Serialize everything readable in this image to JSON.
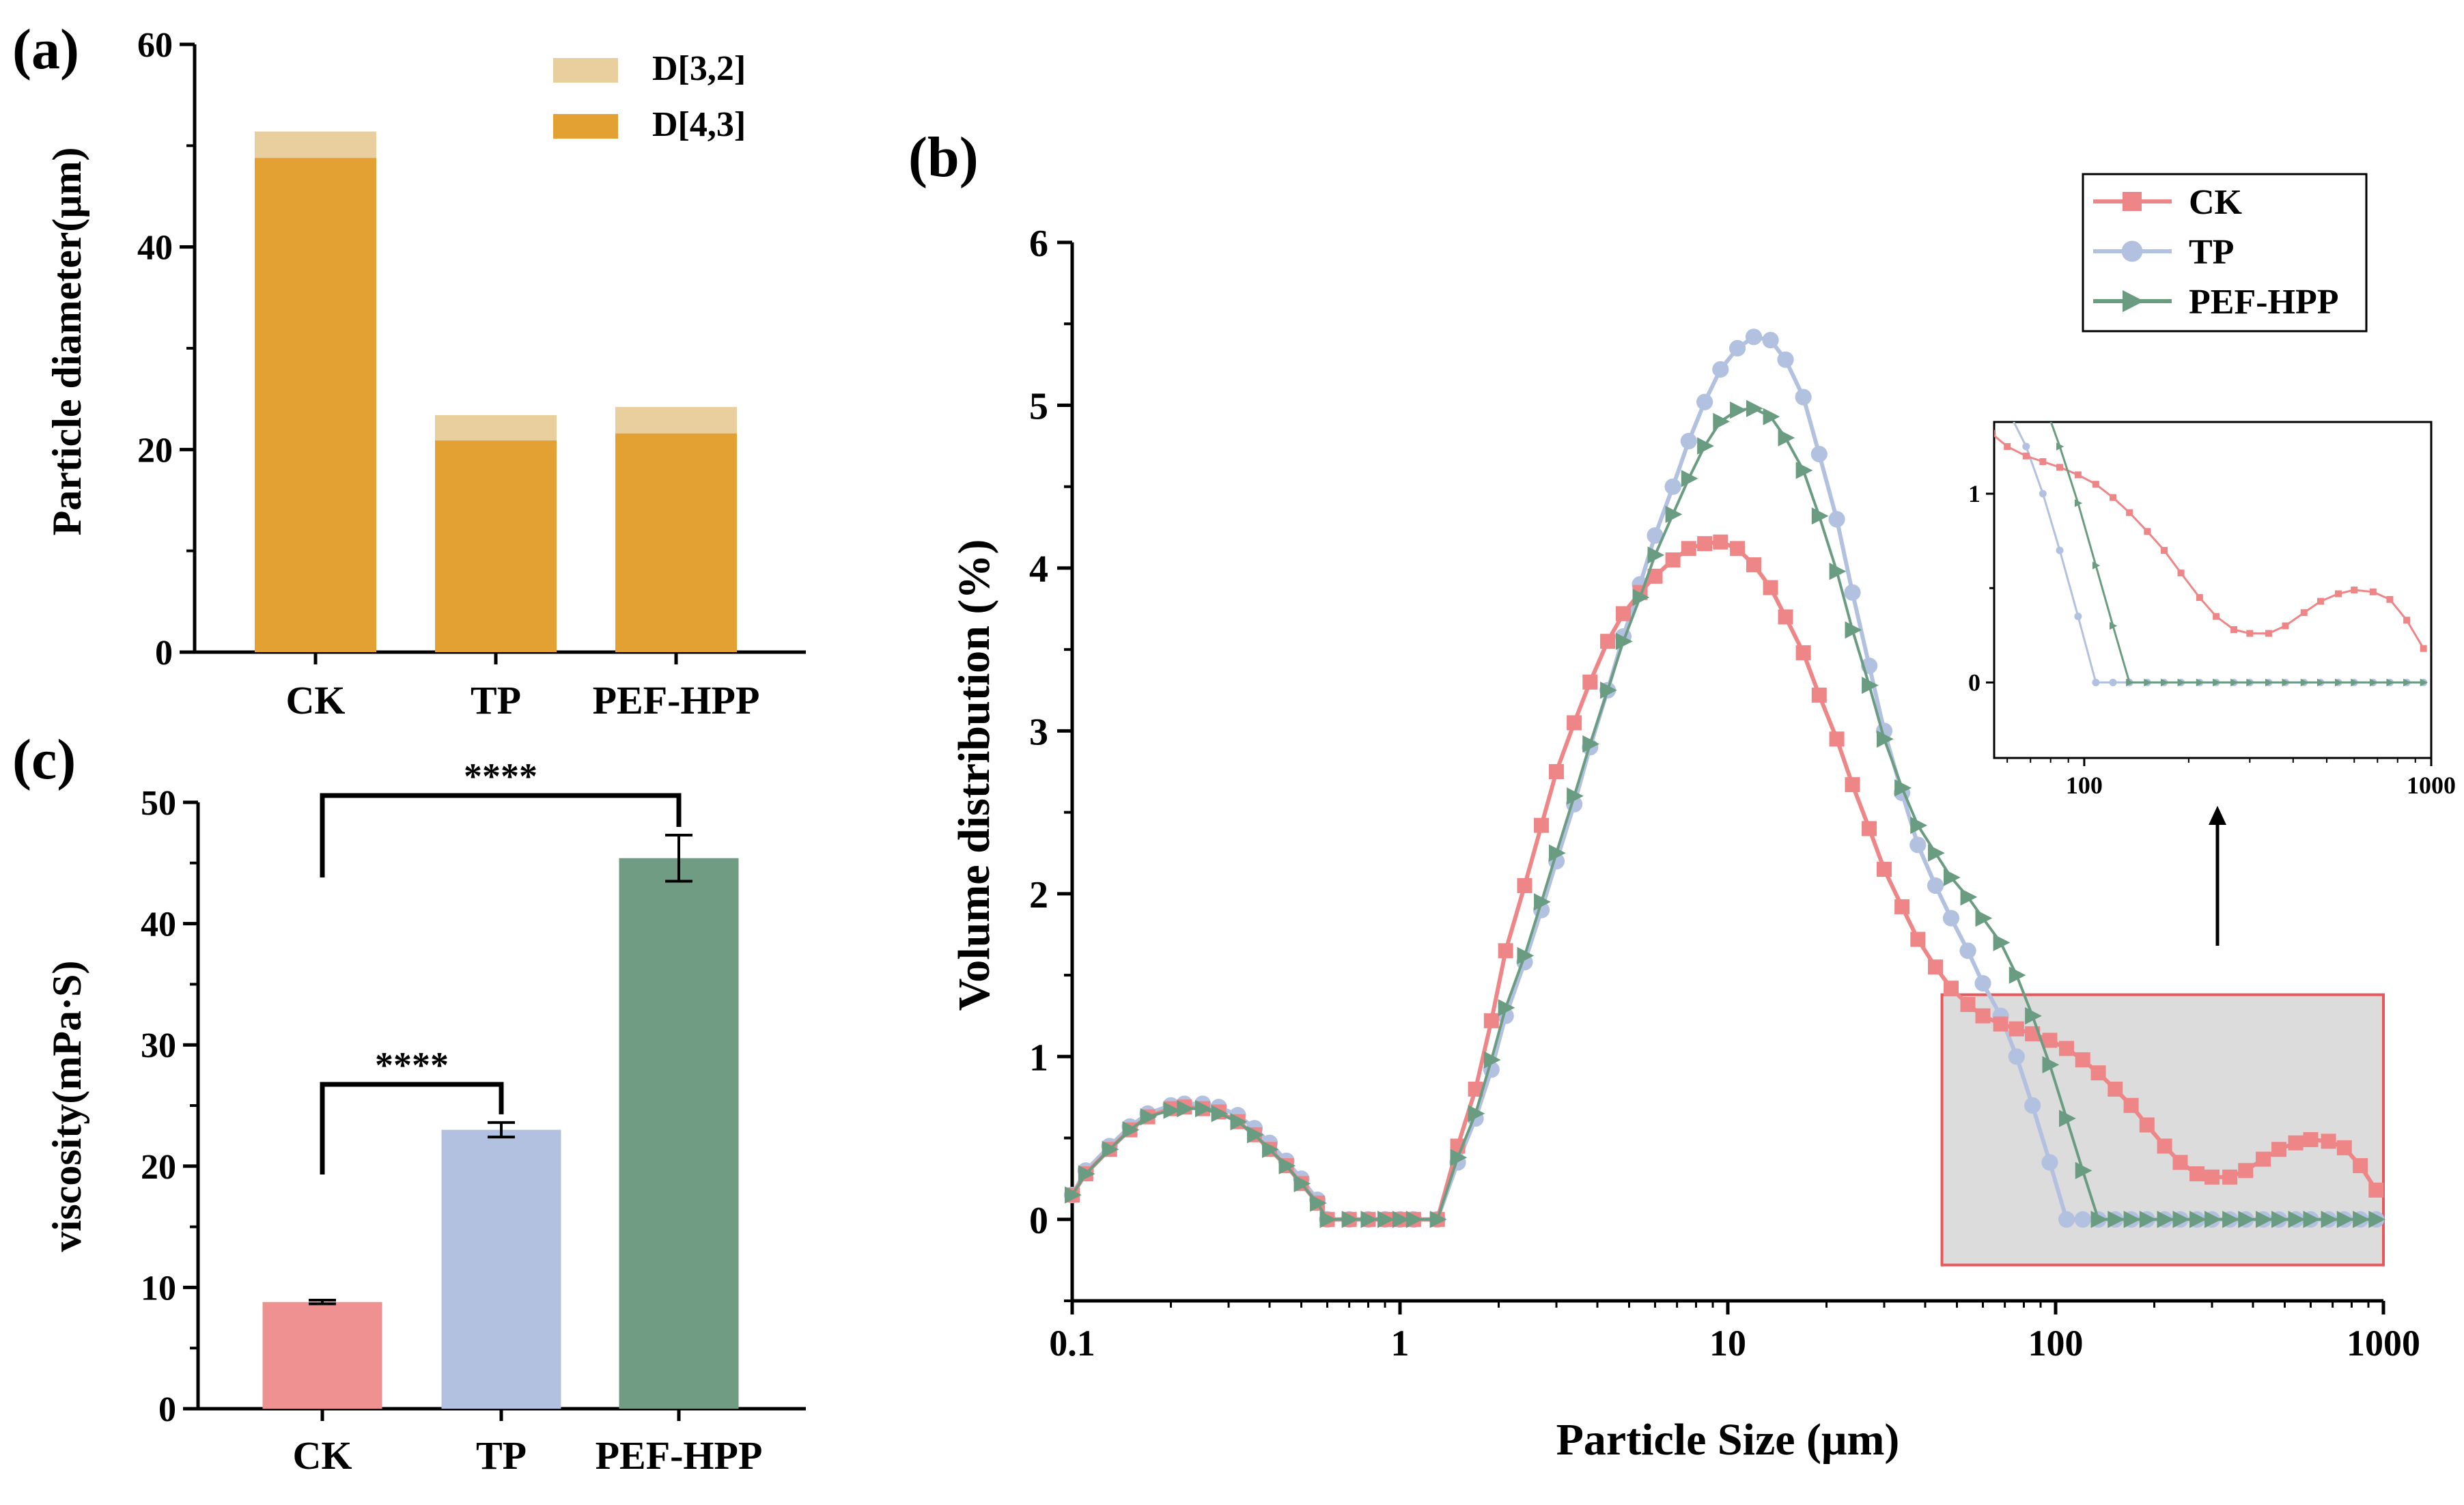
{
  "figure": {
    "panel_labels": [
      "(a)",
      "(b)",
      "(c)"
    ]
  },
  "chart_data": [
    {
      "id": "a",
      "type": "bar",
      "stacked": true,
      "title": "",
      "xlabel": "",
      "ylabel": "Particle diameter(μm)",
      "categories": [
        "CK",
        "TP",
        "PEF-HPP"
      ],
      "series": [
        {
          "name": "D[4,3]",
          "color": "#E3A133",
          "values": [
            48.8,
            20.9,
            21.6
          ]
        },
        {
          "name": "D[3,2]",
          "color": "#EACF9E",
          "values": [
            2.6,
            2.5,
            2.6
          ]
        }
      ],
      "legend_order": [
        "D[3,2]",
        "D[4,3]"
      ],
      "ylim": [
        0,
        60
      ],
      "yticks": [
        0,
        20,
        40,
        60
      ],
      "ytick_labels": [
        "0",
        "20",
        "40",
        "60"
      ],
      "legend_position": "top-right"
    },
    {
      "id": "c",
      "type": "bar",
      "title": "",
      "xlabel": "",
      "ylabel": "viscosity(mPa·S)",
      "categories": [
        "CK",
        "TP",
        "PEF-HPP"
      ],
      "values": [
        8.8,
        23.0,
        45.4
      ],
      "errors": [
        0.15,
        0.6,
        1.9
      ],
      "colors": [
        "#EE9190",
        "#B1C1DF",
        "#6F9C82"
      ],
      "ylim": [
        0,
        50
      ],
      "yticks": [
        0,
        10,
        20,
        30,
        40,
        50
      ],
      "ytick_labels": [
        "0",
        "10",
        "20",
        "30",
        "40",
        "50"
      ],
      "annotations": [
        {
          "from": "CK",
          "to": "PEF-HPP",
          "label": "****"
        },
        {
          "from": "CK",
          "to": "TP",
          "label": "****"
        }
      ]
    },
    {
      "id": "b",
      "type": "line",
      "title": "",
      "xscale": "log",
      "xlabel": "Particle Size (μm)",
      "ylabel": "Volume distribution (%)",
      "xlim": [
        0.1,
        1000
      ],
      "ylim": [
        -0.5,
        6
      ],
      "xticks": [
        0.1,
        1,
        10,
        100,
        1000
      ],
      "xtick_labels": [
        "0.1",
        "1",
        "10",
        "100",
        "1000"
      ],
      "yticks": [
        0,
        1,
        2,
        3,
        4,
        5,
        6
      ],
      "ytick_labels": [
        "0",
        "1",
        "2",
        "3",
        "4",
        "5",
        "6"
      ],
      "legend_position": "top-right",
      "highlight_box": {
        "x": [
          45,
          1000
        ],
        "y": [
          -0.28,
          1.38
        ]
      },
      "series": [
        {
          "name": "CK",
          "color": "#EE8586",
          "marker": "square",
          "points": [
            [
              0.1,
              0.15
            ],
            [
              0.11,
              0.28
            ],
            [
              0.13,
              0.43
            ],
            [
              0.15,
              0.55
            ],
            [
              0.17,
              0.63
            ],
            [
              0.2,
              0.68
            ],
            [
              0.22,
              0.69
            ],
            [
              0.25,
              0.68
            ],
            [
              0.28,
              0.66
            ],
            [
              0.32,
              0.6
            ],
            [
              0.36,
              0.52
            ],
            [
              0.4,
              0.43
            ],
            [
              0.45,
              0.33
            ],
            [
              0.5,
              0.22
            ],
            [
              0.56,
              0.1
            ],
            [
              0.6,
              0.0
            ],
            [
              0.7,
              0.0
            ],
            [
              0.8,
              0.0
            ],
            [
              0.9,
              0.0
            ],
            [
              1.0,
              0.0
            ],
            [
              1.1,
              0.0
            ],
            [
              1.3,
              0.0
            ],
            [
              1.5,
              0.45
            ],
            [
              1.7,
              0.8
            ],
            [
              1.9,
              1.22
            ],
            [
              2.1,
              1.65
            ],
            [
              2.4,
              2.05
            ],
            [
              2.7,
              2.42
            ],
            [
              3.0,
              2.75
            ],
            [
              3.4,
              3.05
            ],
            [
              3.8,
              3.3
            ],
            [
              4.3,
              3.55
            ],
            [
              4.8,
              3.72
            ],
            [
              5.4,
              3.85
            ],
            [
              6.0,
              3.95
            ],
            [
              6.8,
              4.05
            ],
            [
              7.6,
              4.12
            ],
            [
              8.5,
              4.15
            ],
            [
              9.5,
              4.16
            ],
            [
              10.7,
              4.12
            ],
            [
              12.0,
              4.02
            ],
            [
              13.5,
              3.88
            ],
            [
              15.0,
              3.7
            ],
            [
              17.0,
              3.48
            ],
            [
              19.0,
              3.22
            ],
            [
              21.5,
              2.95
            ],
            [
              24.0,
              2.67
            ],
            [
              27.0,
              2.4
            ],
            [
              30.0,
              2.15
            ],
            [
              34.0,
              1.92
            ],
            [
              38.0,
              1.72
            ],
            [
              43.0,
              1.55
            ],
            [
              48.0,
              1.42
            ],
            [
              54.0,
              1.32
            ],
            [
              60.0,
              1.25
            ],
            [
              68.0,
              1.2
            ],
            [
              76.0,
              1.17
            ],
            [
              85.0,
              1.14
            ],
            [
              96.0,
              1.1
            ],
            [
              108.0,
              1.05
            ],
            [
              121.0,
              0.98
            ],
            [
              135.0,
              0.9
            ],
            [
              152.0,
              0.8
            ],
            [
              170.0,
              0.7
            ],
            [
              190.0,
              0.58
            ],
            [
              215.0,
              0.45
            ],
            [
              240.0,
              0.35
            ],
            [
              270.0,
              0.28
            ],
            [
              300.0,
              0.26
            ],
            [
              340.0,
              0.26
            ],
            [
              380.0,
              0.3
            ],
            [
              430.0,
              0.37
            ],
            [
              480.0,
              0.43
            ],
            [
              540.0,
              0.47
            ],
            [
              600.0,
              0.49
            ],
            [
              680.0,
              0.48
            ],
            [
              760.0,
              0.44
            ],
            [
              850.0,
              0.33
            ],
            [
              950.0,
              0.18
            ]
          ]
        },
        {
          "name": "TP",
          "color": "#B3C1E0",
          "marker": "circle",
          "points": [
            [
              0.1,
              0.15
            ],
            [
              0.11,
              0.3
            ],
            [
              0.13,
              0.45
            ],
            [
              0.15,
              0.57
            ],
            [
              0.17,
              0.65
            ],
            [
              0.2,
              0.7
            ],
            [
              0.22,
              0.71
            ],
            [
              0.25,
              0.71
            ],
            [
              0.28,
              0.69
            ],
            [
              0.32,
              0.64
            ],
            [
              0.36,
              0.56
            ],
            [
              0.4,
              0.47
            ],
            [
              0.45,
              0.36
            ],
            [
              0.5,
              0.25
            ],
            [
              0.56,
              0.12
            ],
            [
              0.6,
              0.0
            ],
            [
              0.7,
              0.0
            ],
            [
              0.8,
              0.0
            ],
            [
              0.9,
              0.0
            ],
            [
              1.0,
              0.0
            ],
            [
              1.1,
              0.0
            ],
            [
              1.3,
              0.0
            ],
            [
              1.5,
              0.35
            ],
            [
              1.7,
              0.62
            ],
            [
              1.9,
              0.92
            ],
            [
              2.1,
              1.25
            ],
            [
              2.4,
              1.58
            ],
            [
              2.7,
              1.9
            ],
            [
              3.0,
              2.2
            ],
            [
              3.4,
              2.55
            ],
            [
              3.8,
              2.9
            ],
            [
              4.3,
              3.25
            ],
            [
              4.8,
              3.58
            ],
            [
              5.4,
              3.9
            ],
            [
              6.0,
              4.2
            ],
            [
              6.8,
              4.5
            ],
            [
              7.6,
              4.78
            ],
            [
              8.5,
              5.02
            ],
            [
              9.5,
              5.22
            ],
            [
              10.7,
              5.35
            ],
            [
              12.0,
              5.42
            ],
            [
              13.5,
              5.4
            ],
            [
              15.0,
              5.28
            ],
            [
              17.0,
              5.05
            ],
            [
              19.0,
              4.7
            ],
            [
              21.5,
              4.3
            ],
            [
              24.0,
              3.85
            ],
            [
              27.0,
              3.4
            ],
            [
              30.0,
              3.0
            ],
            [
              34.0,
              2.62
            ],
            [
              38.0,
              2.3
            ],
            [
              43.0,
              2.05
            ],
            [
              48.0,
              1.85
            ],
            [
              54.0,
              1.65
            ],
            [
              60.0,
              1.45
            ],
            [
              68.0,
              1.25
            ],
            [
              76.0,
              1.0
            ],
            [
              85.0,
              0.7
            ],
            [
              96.0,
              0.35
            ],
            [
              108.0,
              0.0
            ],
            [
              121.0,
              0.0
            ],
            [
              135.0,
              0.0
            ],
            [
              152.0,
              0.0
            ],
            [
              170.0,
              0.0
            ],
            [
              190.0,
              0.0
            ],
            [
              215.0,
              0.0
            ],
            [
              240.0,
              0.0
            ],
            [
              270.0,
              0.0
            ],
            [
              300.0,
              0.0
            ],
            [
              340.0,
              0.0
            ],
            [
              380.0,
              0.0
            ],
            [
              430.0,
              0.0
            ],
            [
              480.0,
              0.0
            ],
            [
              540.0,
              0.0
            ],
            [
              600.0,
              0.0
            ],
            [
              680.0,
              0.0
            ],
            [
              760.0,
              0.0
            ],
            [
              850.0,
              0.0
            ],
            [
              950.0,
              0.0
            ]
          ]
        },
        {
          "name": "PEF-HPP",
          "color": "#6A9C82",
          "marker": "triangle-right",
          "points": [
            [
              0.1,
              0.15
            ],
            [
              0.11,
              0.28
            ],
            [
              0.13,
              0.43
            ],
            [
              0.15,
              0.55
            ],
            [
              0.17,
              0.63
            ],
            [
              0.2,
              0.67
            ],
            [
              0.22,
              0.68
            ],
            [
              0.25,
              0.68
            ],
            [
              0.28,
              0.65
            ],
            [
              0.32,
              0.6
            ],
            [
              0.36,
              0.52
            ],
            [
              0.4,
              0.43
            ],
            [
              0.45,
              0.33
            ],
            [
              0.5,
              0.22
            ],
            [
              0.56,
              0.1
            ],
            [
              0.6,
              0.0
            ],
            [
              0.7,
              0.0
            ],
            [
              0.8,
              0.0
            ],
            [
              0.9,
              0.0
            ],
            [
              1.0,
              0.0
            ],
            [
              1.1,
              0.0
            ],
            [
              1.3,
              0.0
            ],
            [
              1.5,
              0.38
            ],
            [
              1.7,
              0.65
            ],
            [
              1.9,
              0.98
            ],
            [
              2.1,
              1.3
            ],
            [
              2.4,
              1.62
            ],
            [
              2.7,
              1.95
            ],
            [
              3.0,
              2.25
            ],
            [
              3.4,
              2.6
            ],
            [
              3.8,
              2.92
            ],
            [
              4.3,
              3.25
            ],
            [
              4.8,
              3.55
            ],
            [
              5.4,
              3.82
            ],
            [
              6.0,
              4.08
            ],
            [
              6.8,
              4.33
            ],
            [
              7.6,
              4.55
            ],
            [
              8.5,
              4.75
            ],
            [
              9.5,
              4.9
            ],
            [
              10.7,
              4.97
            ],
            [
              12.0,
              4.98
            ],
            [
              13.5,
              4.93
            ],
            [
              15.0,
              4.8
            ],
            [
              17.0,
              4.6
            ],
            [
              19.0,
              4.32
            ],
            [
              21.5,
              3.98
            ],
            [
              24.0,
              3.62
            ],
            [
              27.0,
              3.28
            ],
            [
              30.0,
              2.95
            ],
            [
              34.0,
              2.65
            ],
            [
              38.0,
              2.42
            ],
            [
              43.0,
              2.25
            ],
            [
              48.0,
              2.1
            ],
            [
              54.0,
              1.98
            ],
            [
              60.0,
              1.85
            ],
            [
              68.0,
              1.7
            ],
            [
              76.0,
              1.5
            ],
            [
              85.0,
              1.25
            ],
            [
              96.0,
              0.95
            ],
            [
              108.0,
              0.62
            ],
            [
              121.0,
              0.3
            ],
            [
              135.0,
              0.0
            ],
            [
              152.0,
              0.0
            ],
            [
              170.0,
              0.0
            ],
            [
              190.0,
              0.0
            ],
            [
              215.0,
              0.0
            ],
            [
              240.0,
              0.0
            ],
            [
              270.0,
              0.0
            ],
            [
              300.0,
              0.0
            ],
            [
              340.0,
              0.0
            ],
            [
              380.0,
              0.0
            ],
            [
              430.0,
              0.0
            ],
            [
              480.0,
              0.0
            ],
            [
              540.0,
              0.0
            ],
            [
              600.0,
              0.0
            ],
            [
              680.0,
              0.0
            ],
            [
              760.0,
              0.0
            ],
            [
              850.0,
              0.0
            ],
            [
              950.0,
              0.0
            ]
          ]
        }
      ]
    },
    {
      "id": "b-inset",
      "type": "line",
      "xscale": "log",
      "xlim": [
        55,
        1000
      ],
      "ylim": [
        -0.4,
        1.38
      ],
      "xticks": [
        100,
        1000
      ],
      "xtick_labels": [
        "100",
        "1000"
      ],
      "yticks": [
        0,
        1
      ],
      "ytick_labels": [
        "0",
        "1"
      ],
      "series_ref": "b"
    }
  ]
}
